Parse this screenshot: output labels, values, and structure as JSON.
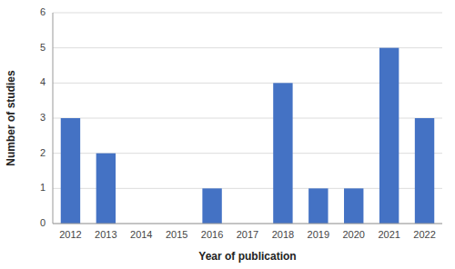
{
  "chart_data": {
    "type": "bar",
    "xlabel": "Year of publication",
    "ylabel": "Number of studies",
    "categories": [
      "2012",
      "2013",
      "2014",
      "2015",
      "2016",
      "2017",
      "2018",
      "2019",
      "2020",
      "2021",
      "2022"
    ],
    "values": [
      3,
      2,
      0,
      0,
      1,
      0,
      4,
      1,
      1,
      5,
      3
    ],
    "color": "#4472C4",
    "ylim": [
      0,
      6
    ],
    "yticks": [
      0,
      1,
      2,
      3,
      4,
      5,
      6
    ],
    "grid": true
  }
}
